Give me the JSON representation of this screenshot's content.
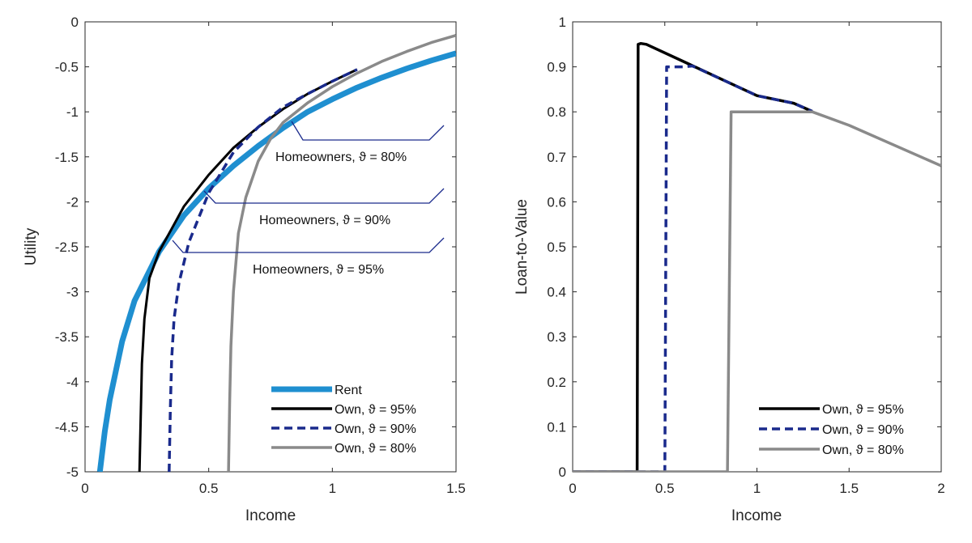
{
  "colors": {
    "rent": "#1f8fd0",
    "own95": "#000000",
    "own90": "#1a2a8c",
    "own80": "#8a8a8a",
    "annotation": "#1a2a8c"
  },
  "chart_data": [
    {
      "type": "line",
      "xlabel": "Income",
      "ylabel": "Utility",
      "xlim": [
        0,
        1.5
      ],
      "ylim": [
        -5,
        0
      ],
      "xticks": [
        "0",
        "0.5",
        "1",
        "1.5"
      ],
      "yticks": [
        "0",
        "-0.5",
        "-1",
        "-1.5",
        "-2",
        "-2.5",
        "-3",
        "-3.5",
        "-4",
        "-4.5",
        "-5"
      ],
      "series": [
        {
          "name": "Rent",
          "color": "rent",
          "style": "solid",
          "x": [
            0.06,
            0.08,
            0.1,
            0.15,
            0.2,
            0.3,
            0.4,
            0.5,
            0.6,
            0.7,
            0.8,
            0.9,
            1.0,
            1.1,
            1.2,
            1.3,
            1.4,
            1.5
          ],
          "y": [
            -5.0,
            -4.55,
            -4.2,
            -3.55,
            -3.1,
            -2.55,
            -2.15,
            -1.85,
            -1.6,
            -1.38,
            -1.18,
            -1.0,
            -0.86,
            -0.73,
            -0.62,
            -0.52,
            -0.43,
            -0.35
          ]
        },
        {
          "name": "Own, ϑ = 95%",
          "color": "own95",
          "style": "solid",
          "x": [
            0.22,
            0.225,
            0.23,
            0.24,
            0.26,
            0.3,
            0.35,
            0.4,
            0.5,
            0.6,
            0.7,
            0.8,
            0.9,
            1.0,
            1.1
          ],
          "y": [
            -5.0,
            -4.4,
            -3.8,
            -3.3,
            -2.85,
            -2.55,
            -2.3,
            -2.05,
            -1.7,
            -1.4,
            -1.17,
            -0.97,
            -0.8,
            -0.66,
            -0.53
          ]
        },
        {
          "name": "Own, ϑ = 90%",
          "color": "own90",
          "style": "dashed",
          "x": [
            0.34,
            0.345,
            0.35,
            0.36,
            0.38,
            0.42,
            0.5,
            0.6,
            0.7,
            0.8,
            0.9,
            1.0,
            1.1
          ],
          "y": [
            -5.0,
            -4.3,
            -3.75,
            -3.3,
            -2.9,
            -2.45,
            -1.9,
            -1.45,
            -1.17,
            -0.95,
            -0.8,
            -0.66,
            -0.53
          ]
        },
        {
          "name": "Own, ϑ = 80%",
          "color": "own80",
          "style": "solid",
          "x": [
            0.58,
            0.585,
            0.59,
            0.6,
            0.62,
            0.65,
            0.7,
            0.75,
            0.8,
            0.9,
            1.0,
            1.1,
            1.2,
            1.3,
            1.4,
            1.5
          ],
          "y": [
            -5.0,
            -4.2,
            -3.6,
            -3.0,
            -2.35,
            -1.95,
            -1.55,
            -1.3,
            -1.12,
            -0.9,
            -0.72,
            -0.57,
            -0.44,
            -0.33,
            -0.23,
            -0.15
          ]
        }
      ],
      "annotations": [
        {
          "text": "Homeowners, ϑ = 80%"
        },
        {
          "text": "Homeowners, ϑ = 90%"
        },
        {
          "text": "Homeowners, ϑ = 95%"
        }
      ],
      "legend": "bottom-right"
    },
    {
      "type": "line",
      "xlabel": "Income",
      "ylabel": "Loan-to-Value",
      "xlim": [
        0,
        2
      ],
      "ylim": [
        0,
        1
      ],
      "xticks": [
        "0",
        "0.5",
        "1",
        "1.5",
        "2"
      ],
      "yticks": [
        "0",
        "0.1",
        "0.2",
        "0.3",
        "0.4",
        "0.5",
        "0.6",
        "0.7",
        "0.8",
        "0.9",
        "1"
      ],
      "series": [
        {
          "name": "Own, ϑ = 95%",
          "color": "own95",
          "style": "solid",
          "x": [
            0,
            0.35,
            0.355,
            0.37,
            0.4,
            0.6,
            0.8,
            1.0,
            1.2,
            1.3
          ],
          "y": [
            0,
            0,
            0.95,
            0.952,
            0.95,
            0.912,
            0.874,
            0.836,
            0.819,
            0.801
          ]
        },
        {
          "name": "Own, ϑ = 90%",
          "color": "own90",
          "style": "dashed",
          "x": [
            0,
            0.5,
            0.51,
            0.6,
            0.65,
            0.8,
            1.0,
            1.2,
            1.3
          ],
          "y": [
            0,
            0,
            0.9,
            0.9,
            0.902,
            0.874,
            0.836,
            0.819,
            0.801
          ]
        },
        {
          "name": "Own, ϑ = 80%",
          "color": "own80",
          "style": "solid",
          "x": [
            0,
            0.84,
            0.86,
            1.0,
            1.2,
            1.3,
            1.5,
            2.0
          ],
          "y": [
            0,
            0,
            0.8,
            0.8,
            0.8,
            0.8,
            0.77,
            0.68
          ]
        }
      ],
      "legend": "bottom-right"
    }
  ]
}
